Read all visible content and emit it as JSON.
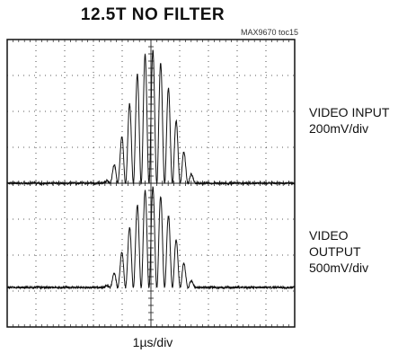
{
  "title": "12.5T NO FILTER",
  "toc_label": "MAX9670 toc15",
  "chart_data": {
    "type": "line",
    "title": "12.5T NO FILTER",
    "xlabel": "1µs/div",
    "grid": true,
    "grid_divisions": {
      "x": 10,
      "y": 8
    },
    "x_unit": "div",
    "xlim": [
      0,
      10
    ],
    "ylim": [
      0,
      8
    ],
    "series": [
      {
        "name": "VIDEO INPUT",
        "scale": "200mV/div",
        "baseline_div": 4.0,
        "envelope": {
          "start_div": 3.3,
          "peak_div": 5.0,
          "end_div": 6.7,
          "peak_amplitude_div": 3.7
        },
        "cycles": 12.5
      },
      {
        "name": "VIDEO OUTPUT",
        "scale": "500mV/div",
        "baseline_div": 1.1,
        "envelope": {
          "start_div": 3.3,
          "peak_div": 5.0,
          "end_div": 6.7,
          "peak_amplitude_div": 2.8
        },
        "cycles": 12.5
      }
    ]
  },
  "labels": {
    "input_name": "VIDEO INPUT",
    "input_scale": "200mV/div",
    "output_name": "VIDEO OUTPUT",
    "output_scale": "500mV/div"
  },
  "colors": {
    "trace": "#111111",
    "grid": "#222222",
    "frame": "#111111"
  }
}
